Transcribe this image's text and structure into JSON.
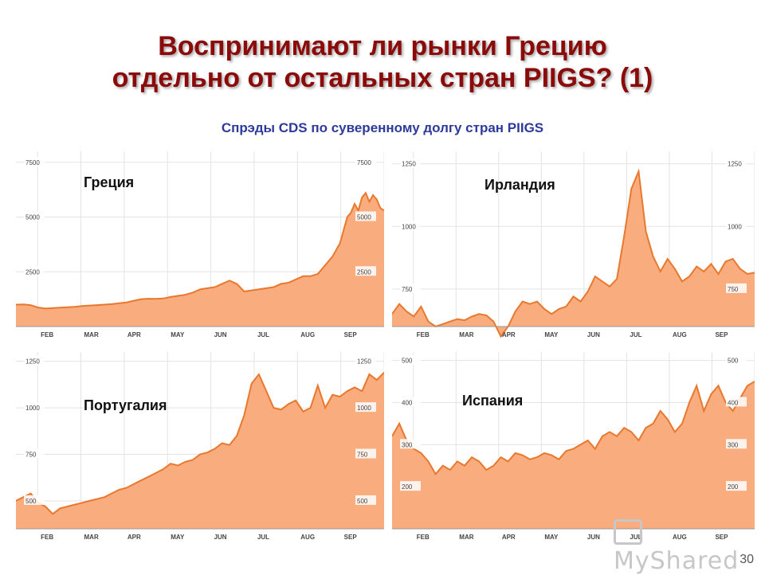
{
  "slide": {
    "title_line1": "Воспринимают ли рынки Грецию",
    "title_line2": "отдельно от остальных стран PIIGS? (1)",
    "subtitle": "Спрэды CDS по суверенному долгу стран PIIGS",
    "page_number": "30",
    "watermark": "MyShared"
  },
  "colors": {
    "area_fill": "#f9ac7d",
    "line": "#e9782f",
    "grid": "#e3e3e3",
    "axis_text": "#444444"
  },
  "chart_data": [
    {
      "type": "area",
      "title": "Греция",
      "months": [
        "FEB",
        "MAR",
        "APR",
        "MAY",
        "JUN",
        "JUL",
        "AUG",
        "SEP"
      ],
      "yticks": [
        "7500",
        "5000",
        "2500"
      ],
      "ylim": [
        0,
        8000
      ],
      "x": [
        0,
        0.02,
        0.04,
        0.06,
        0.08,
        0.1,
        0.12,
        0.14,
        0.16,
        0.18,
        0.2,
        0.22,
        0.24,
        0.26,
        0.28,
        0.3,
        0.32,
        0.34,
        0.36,
        0.38,
        0.4,
        0.42,
        0.44,
        0.46,
        0.48,
        0.5,
        0.52,
        0.54,
        0.56,
        0.58,
        0.6,
        0.62,
        0.64,
        0.66,
        0.68,
        0.7,
        0.72,
        0.74,
        0.76,
        0.78,
        0.8,
        0.82,
        0.84,
        0.86,
        0.88,
        0.9,
        0.91,
        0.92,
        0.93,
        0.94,
        0.95,
        0.96,
        0.97,
        0.98,
        0.99,
        1.0
      ],
      "values": [
        1000,
        1010,
        980,
        870,
        820,
        840,
        860,
        880,
        900,
        940,
        960,
        980,
        1000,
        1020,
        1060,
        1100,
        1180,
        1250,
        1270,
        1260,
        1280,
        1350,
        1400,
        1450,
        1550,
        1700,
        1750,
        1800,
        1950,
        2100,
        1950,
        1600,
        1650,
        1700,
        1750,
        1800,
        1950,
        2000,
        2150,
        2300,
        2300,
        2400,
        2800,
        3200,
        3800,
        5000,
        5200,
        5600,
        5300,
        5900,
        6100,
        5700,
        6000,
        5800,
        5400,
        5300
      ]
    },
    {
      "type": "area",
      "title": "Ирландия",
      "months": [
        "FEB",
        "MAR",
        "APR",
        "MAY",
        "JUN",
        "JUL",
        "AUG",
        "SEP"
      ],
      "yticks": [
        "1250",
        "1000",
        "750"
      ],
      "ylim": [
        600,
        1300
      ],
      "x": [
        0,
        0.02,
        0.04,
        0.06,
        0.08,
        0.1,
        0.12,
        0.14,
        0.16,
        0.18,
        0.2,
        0.22,
        0.24,
        0.26,
        0.28,
        0.3,
        0.32,
        0.34,
        0.36,
        0.38,
        0.4,
        0.42,
        0.44,
        0.46,
        0.48,
        0.5,
        0.52,
        0.54,
        0.56,
        0.58,
        0.6,
        0.62,
        0.64,
        0.66,
        0.68,
        0.7,
        0.72,
        0.74,
        0.76,
        0.78,
        0.8,
        0.82,
        0.84,
        0.86,
        0.88,
        0.9,
        0.92,
        0.94,
        0.96,
        0.98,
        1.0
      ],
      "values": [
        650,
        690,
        660,
        640,
        680,
        620,
        600,
        610,
        620,
        630,
        625,
        640,
        650,
        645,
        620,
        560,
        600,
        660,
        700,
        690,
        700,
        670,
        650,
        670,
        680,
        720,
        700,
        740,
        800,
        780,
        760,
        790,
        960,
        1150,
        1220,
        980,
        880,
        820,
        870,
        830,
        780,
        800,
        840,
        820,
        850,
        810,
        860,
        870,
        830,
        810,
        815
      ]
    },
    {
      "type": "area",
      "title": "Португалия",
      "months": [
        "FEB",
        "MAR",
        "APR",
        "MAY",
        "JUN",
        "JUL",
        "AUG",
        "SEP"
      ],
      "yticks": [
        "1250",
        "1000",
        "750",
        "500"
      ],
      "ylim": [
        350,
        1300
      ],
      "x": [
        0,
        0.02,
        0.04,
        0.06,
        0.08,
        0.1,
        0.12,
        0.14,
        0.16,
        0.18,
        0.2,
        0.22,
        0.24,
        0.26,
        0.28,
        0.3,
        0.32,
        0.34,
        0.36,
        0.38,
        0.4,
        0.42,
        0.44,
        0.46,
        0.48,
        0.5,
        0.52,
        0.54,
        0.56,
        0.58,
        0.6,
        0.62,
        0.64,
        0.66,
        0.68,
        0.7,
        0.72,
        0.74,
        0.76,
        0.78,
        0.8,
        0.82,
        0.84,
        0.86,
        0.88,
        0.9,
        0.92,
        0.94,
        0.96,
        0.98,
        1.0
      ],
      "values": [
        500,
        520,
        540,
        490,
        470,
        430,
        460,
        470,
        480,
        490,
        500,
        510,
        520,
        540,
        560,
        570,
        590,
        610,
        630,
        650,
        670,
        700,
        690,
        710,
        720,
        750,
        760,
        780,
        810,
        800,
        850,
        960,
        1130,
        1180,
        1090,
        1000,
        990,
        1020,
        1040,
        980,
        1000,
        1120,
        1000,
        1070,
        1060,
        1090,
        1110,
        1090,
        1180,
        1150,
        1190
      ]
    },
    {
      "type": "area",
      "title": "Испания",
      "months": [
        "FEB",
        "MAR",
        "APR",
        "MAY",
        "JUN",
        "JUL",
        "AUG",
        "SEP"
      ],
      "yticks": [
        "500",
        "400",
        "300",
        "200"
      ],
      "ylim": [
        100,
        520
      ],
      "x": [
        0,
        0.02,
        0.04,
        0.06,
        0.08,
        0.1,
        0.12,
        0.14,
        0.16,
        0.18,
        0.2,
        0.22,
        0.24,
        0.26,
        0.28,
        0.3,
        0.32,
        0.34,
        0.36,
        0.38,
        0.4,
        0.42,
        0.44,
        0.46,
        0.48,
        0.5,
        0.52,
        0.54,
        0.56,
        0.58,
        0.6,
        0.62,
        0.64,
        0.66,
        0.68,
        0.7,
        0.72,
        0.74,
        0.76,
        0.78,
        0.8,
        0.82,
        0.84,
        0.86,
        0.88,
        0.9,
        0.92,
        0.94,
        0.96,
        0.98,
        1.0
      ],
      "values": [
        320,
        350,
        310,
        290,
        280,
        260,
        230,
        250,
        240,
        260,
        250,
        270,
        260,
        240,
        250,
        270,
        260,
        280,
        275,
        265,
        270,
        280,
        275,
        265,
        285,
        290,
        300,
        310,
        290,
        320,
        330,
        320,
        340,
        330,
        310,
        340,
        350,
        380,
        360,
        330,
        350,
        400,
        440,
        380,
        420,
        440,
        400,
        380,
        410,
        440,
        450
      ]
    }
  ]
}
